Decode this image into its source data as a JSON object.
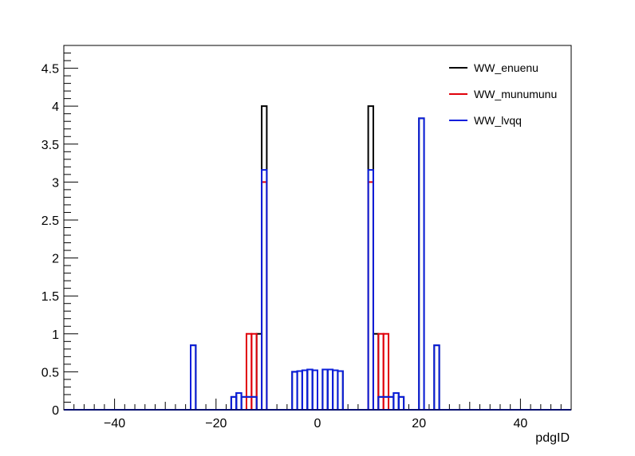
{
  "chart_data": {
    "type": "histogram",
    "title": "",
    "xlabel": "pdgID",
    "ylabel": "",
    "xlim": [
      -50,
      50
    ],
    "ylim": [
      0,
      4.8
    ],
    "x_ticks": [
      -40,
      -20,
      0,
      20,
      40
    ],
    "y_ticks": [
      0,
      0.5,
      1,
      1.5,
      2,
      2.5,
      3,
      3.5,
      4,
      4.5
    ],
    "x_tick_labels": [
      "−40",
      "−20",
      "0",
      "20",
      "40"
    ],
    "y_tick_labels": [
      "0",
      "0.5",
      "1",
      "1.5",
      "2",
      "2.5",
      "3",
      "3.5",
      "4",
      "4.5"
    ],
    "grid": false,
    "legend_position": "top-right",
    "bin_width": 1,
    "series": [
      {
        "name": "WW_enuenu",
        "color": "#000000",
        "bins": [
          {
            "x0": -25,
            "x1": -24,
            "y": 0.85
          },
          {
            "x0": -17,
            "x1": -16,
            "y": 0.17
          },
          {
            "x0": -16,
            "x1": -15,
            "y": 0.22
          },
          {
            "x0": -15,
            "x1": -12,
            "y": 0.17
          },
          {
            "x0": -12,
            "x1": -11,
            "y": 1.0
          },
          {
            "x0": -11,
            "x1": -10,
            "y": 4.0
          },
          {
            "x0": -5,
            "x1": -4,
            "y": 0.5
          },
          {
            "x0": -4,
            "x1": -3,
            "y": 0.51
          },
          {
            "x0": -3,
            "x1": -2,
            "y": 0.52
          },
          {
            "x0": -2,
            "x1": -1,
            "y": 0.53
          },
          {
            "x0": -1,
            "x1": 0,
            "y": 0.52
          },
          {
            "x0": 0,
            "x1": 1,
            "y": 0.0
          },
          {
            "x0": 1,
            "x1": 2,
            "y": 0.53
          },
          {
            "x0": 2,
            "x1": 3,
            "y": 0.53
          },
          {
            "x0": 3,
            "x1": 4,
            "y": 0.52
          },
          {
            "x0": 4,
            "x1": 5,
            "y": 0.51
          },
          {
            "x0": 10,
            "x1": 11,
            "y": 4.0
          },
          {
            "x0": 11,
            "x1": 12,
            "y": 1.0
          },
          {
            "x0": 12,
            "x1": 15,
            "y": 0.17
          },
          {
            "x0": 15,
            "x1": 16,
            "y": 0.22
          },
          {
            "x0": 16,
            "x1": 17,
            "y": 0.17
          },
          {
            "x0": 20,
            "x1": 21,
            "y": 3.84
          },
          {
            "x0": 23,
            "x1": 24,
            "y": 0.85
          }
        ]
      },
      {
        "name": "WW_munumunu",
        "color": "#e0000a",
        "bins": [
          {
            "x0": -14,
            "x1": -13,
            "y": 1.0
          },
          {
            "x0": -13,
            "x1": -12,
            "y": 1.0
          },
          {
            "x0": -11,
            "x1": -10,
            "y": 3.0
          },
          {
            "x0": 10,
            "x1": 11,
            "y": 3.0
          },
          {
            "x0": 12,
            "x1": 13,
            "y": 1.0
          },
          {
            "x0": 13,
            "x1": 14,
            "y": 1.0
          }
        ]
      },
      {
        "name": "WW_lvqq",
        "color": "#0a1edc",
        "bins": [
          {
            "x0": -25,
            "x1": -24,
            "y": 0.85
          },
          {
            "x0": -17,
            "x1": -16,
            "y": 0.17
          },
          {
            "x0": -16,
            "x1": -15,
            "y": 0.22
          },
          {
            "x0": -15,
            "x1": -12,
            "y": 0.17
          },
          {
            "x0": -11,
            "x1": -10,
            "y": 3.16
          },
          {
            "x0": -5,
            "x1": -4,
            "y": 0.5
          },
          {
            "x0": -4,
            "x1": -3,
            "y": 0.51
          },
          {
            "x0": -3,
            "x1": -2,
            "y": 0.52
          },
          {
            "x0": -2,
            "x1": -1,
            "y": 0.53
          },
          {
            "x0": -1,
            "x1": 0,
            "y": 0.52
          },
          {
            "x0": 0,
            "x1": 1,
            "y": 0.0
          },
          {
            "x0": 1,
            "x1": 2,
            "y": 0.53
          },
          {
            "x0": 2,
            "x1": 3,
            "y": 0.53
          },
          {
            "x0": 3,
            "x1": 4,
            "y": 0.52
          },
          {
            "x0": 4,
            "x1": 5,
            "y": 0.51
          },
          {
            "x0": 10,
            "x1": 11,
            "y": 3.16
          },
          {
            "x0": 12,
            "x1": 15,
            "y": 0.17
          },
          {
            "x0": 15,
            "x1": 16,
            "y": 0.22
          },
          {
            "x0": 16,
            "x1": 17,
            "y": 0.17
          },
          {
            "x0": 20,
            "x1": 21,
            "y": 3.84
          },
          {
            "x0": 23,
            "x1": 24,
            "y": 0.85
          }
        ]
      }
    ]
  }
}
